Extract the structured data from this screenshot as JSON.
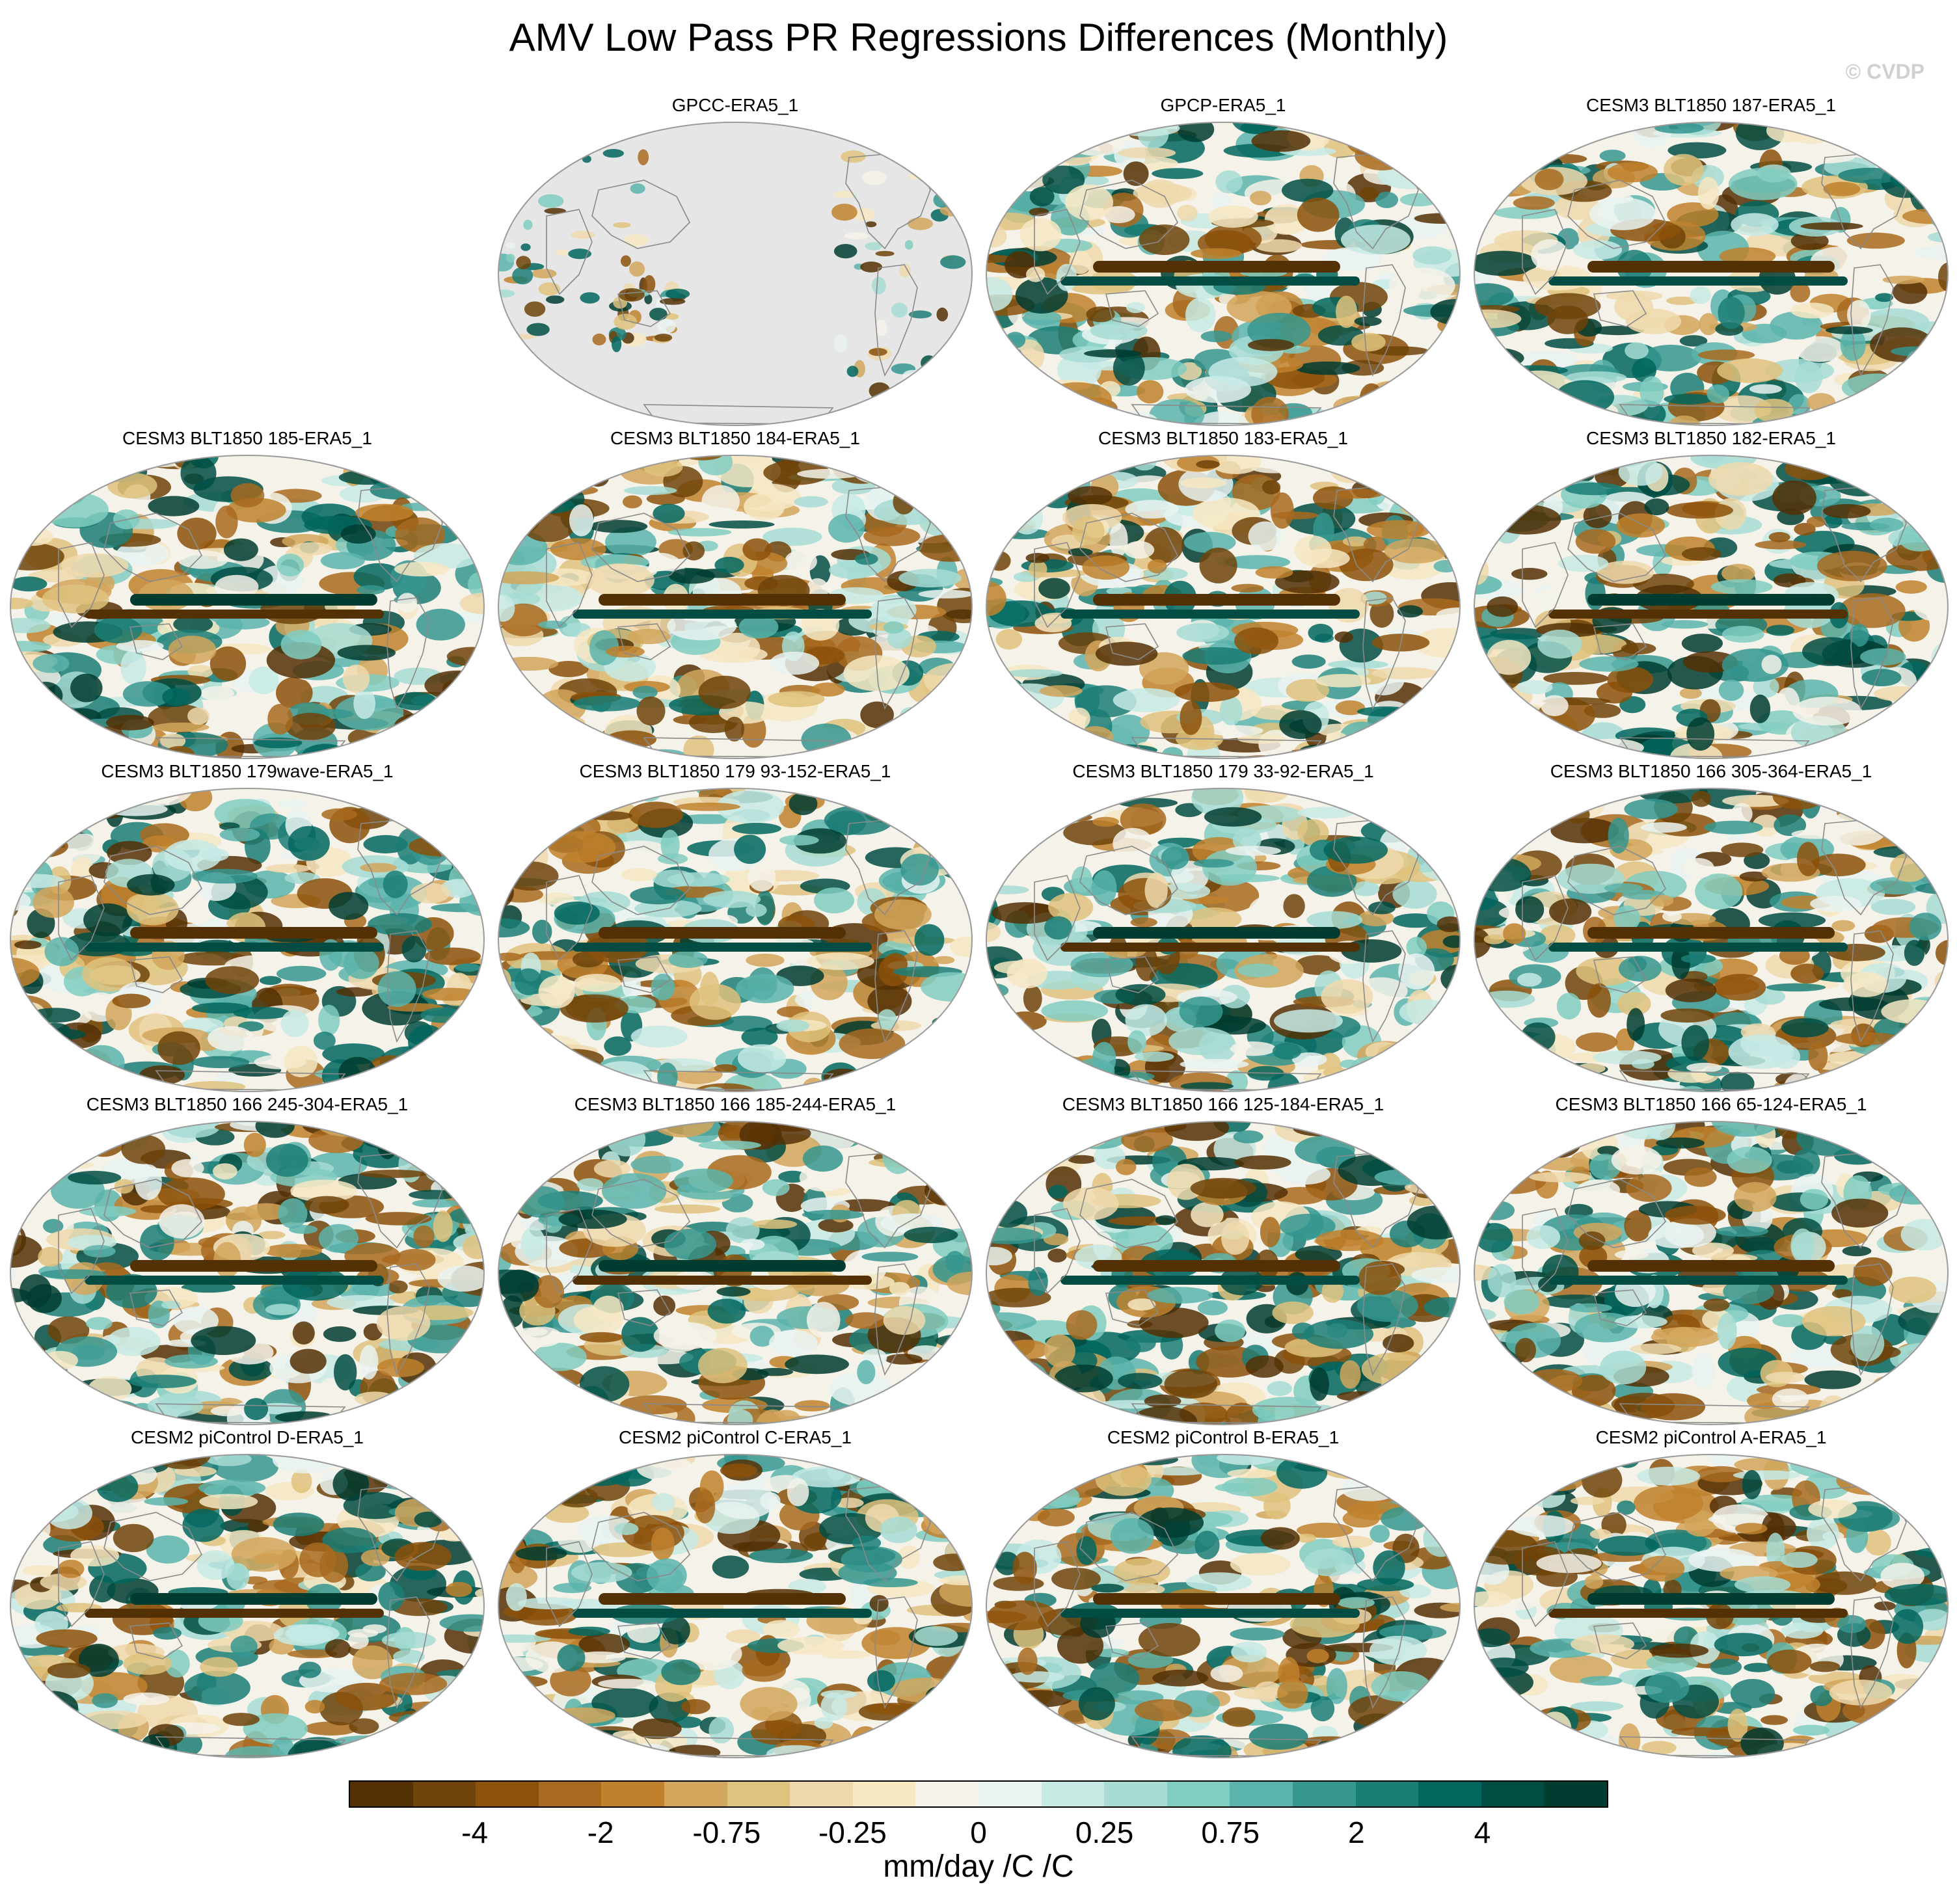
{
  "title": "AMV Low Pass PR Regressions Differences (Monthly)",
  "watermark": "© CVDP",
  "chart_data": {
    "type": "heatmap",
    "projection": "global map (ellipse), Pacific-centered",
    "panels": [
      {
        "title": "GPCC-ERA5_1",
        "land_only": true
      },
      {
        "title": "GPCP-ERA5_1"
      },
      {
        "title": "CESM3 BLT1850 187-ERA5_1"
      },
      {
        "title": "CESM3 BLT1850 185-ERA5_1"
      },
      {
        "title": "CESM3 BLT1850 184-ERA5_1"
      },
      {
        "title": "CESM3 BLT1850 183-ERA5_1"
      },
      {
        "title": "CESM3 BLT1850 182-ERA5_1"
      },
      {
        "title": "CESM3 BLT1850 179wave-ERA5_1"
      },
      {
        "title": "CESM3 BLT1850 179 93-152-ERA5_1"
      },
      {
        "title": "CESM3 BLT1850 179 33-92-ERA5_1"
      },
      {
        "title": "CESM3 BLT1850 166 305-364-ERA5_1"
      },
      {
        "title": "CESM3 BLT1850 166 245-304-ERA5_1"
      },
      {
        "title": "CESM3 BLT1850 166 185-244-ERA5_1"
      },
      {
        "title": "CESM3 BLT1850 166 125-184-ERA5_1"
      },
      {
        "title": "CESM3 BLT1850 166 65-124-ERA5_1"
      },
      {
        "title": "CESM2 piControl D-ERA5_1"
      },
      {
        "title": "CESM2 piControl C-ERA5_1"
      },
      {
        "title": "CESM2 piControl B-ERA5_1"
      },
      {
        "title": "CESM2 piControl A-ERA5_1"
      }
    ],
    "colorbar": {
      "units": "mm/day /C /C",
      "colors": [
        "#543005",
        "#6f4309",
        "#8c510a",
        "#a86a1e",
        "#bf812d",
        "#d2a65c",
        "#dfc27d",
        "#eed9ad",
        "#f6e8c3",
        "#f5f2e9",
        "#e9f3f1",
        "#c7eae5",
        "#a6dcd3",
        "#80cdc1",
        "#5ab4ac",
        "#35978f",
        "#1b7e75",
        "#01665e",
        "#014d43",
        "#003c30"
      ],
      "tick_labels": [
        "-4",
        "-2",
        "-0.75",
        "-0.25",
        "0",
        "0.25",
        "0.75",
        "2",
        "4"
      ],
      "tick_boundaries": [
        2,
        4,
        6,
        8,
        10,
        12,
        14,
        16,
        18
      ]
    }
  }
}
